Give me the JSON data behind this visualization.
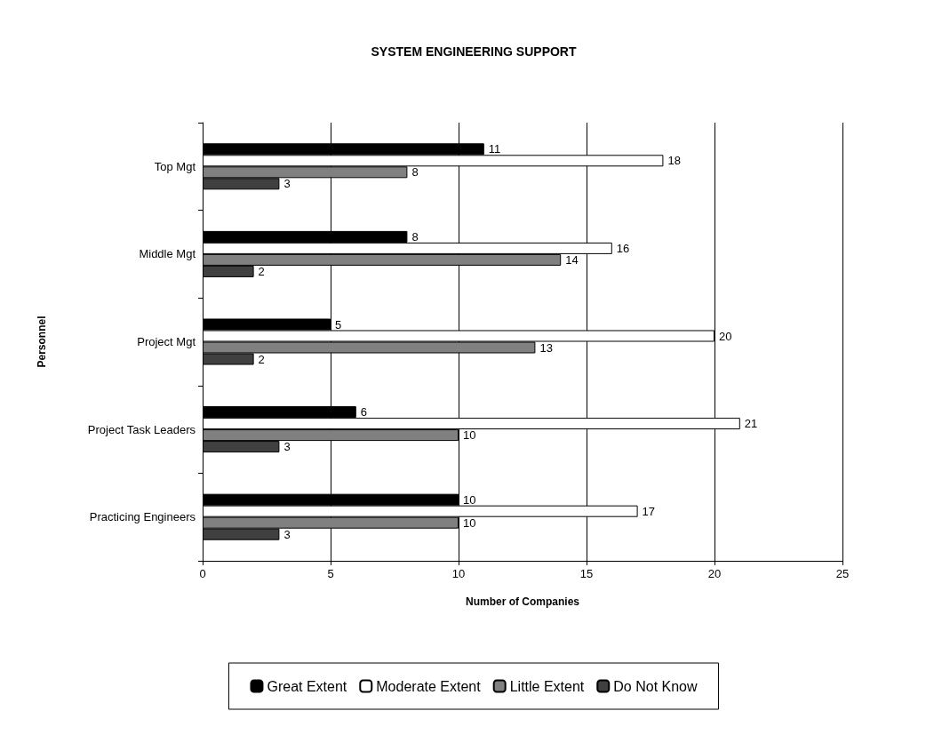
{
  "chart_data": {
    "type": "bar",
    "orientation": "horizontal",
    "title": "SYSTEM ENGINEERING SUPPORT",
    "xlabel": "Number of Companies",
    "ylabel": "Personnel",
    "categories": [
      "Top Mgt",
      "Middle Mgt",
      "Project Mgt",
      "Project Task Leaders",
      "Practicing Engineers"
    ],
    "series": [
      {
        "name": "Great Extent",
        "color": "#000000",
        "values": [
          11,
          8,
          5,
          6,
          10
        ]
      },
      {
        "name": "Moderate Extent",
        "color": "#ffffff",
        "values": [
          18,
          16,
          20,
          21,
          17
        ]
      },
      {
        "name": "Little Extent",
        "color": "#808080",
        "values": [
          8,
          14,
          13,
          10,
          10
        ]
      },
      {
        "name": "Do Not Know",
        "color": "#404040",
        "values": [
          3,
          2,
          2,
          3,
          3
        ]
      }
    ],
    "xlim": [
      0,
      25
    ],
    "xticks": [
      0,
      5,
      10,
      15,
      20,
      25
    ],
    "grid": "x",
    "legend": "bottom",
    "data_labels": true
  }
}
